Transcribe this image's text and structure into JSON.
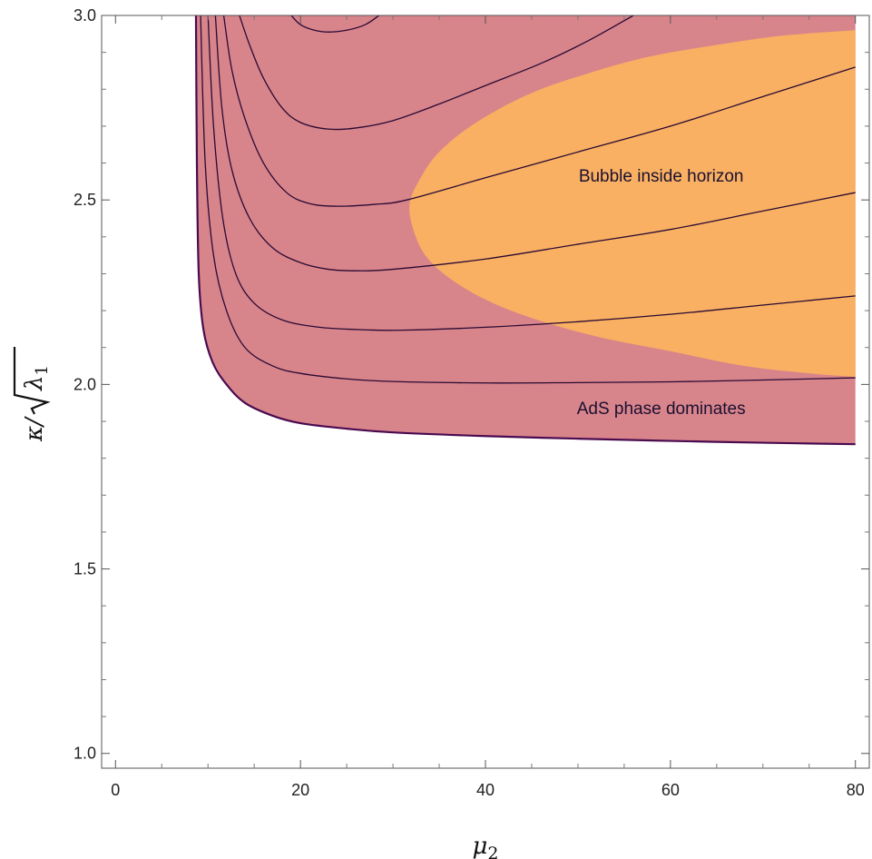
{
  "chart_data": {
    "type": "area",
    "xlabel": "μ2",
    "ylabel": "κ/√λ1",
    "xlim": [
      -1.5,
      81.5
    ],
    "ylim": [
      0.96,
      3.0
    ],
    "x_ticks": [
      0,
      20,
      40,
      60,
      80
    ],
    "y_ticks": [
      1.0,
      1.5,
      2.0,
      2.5,
      3.0
    ],
    "x_tick_labels": [
      "0",
      "20",
      "40",
      "60",
      "80"
    ],
    "y_tick_labels": [
      "1.0",
      "1.5",
      "2.0",
      "2.5",
      "3.0"
    ],
    "grid": false,
    "legend": "none",
    "colors": {
      "ads_region": "#d8848b",
      "bubble_region": "#f9b062",
      "contour": "#2a0a33",
      "boundary": "#4a0b4f"
    },
    "annotations": [
      {
        "text": "Bubble inside horizon",
        "x": 59,
        "y": 2.55
      },
      {
        "text": "AdS phase dominates",
        "x": 59,
        "y": 1.92
      }
    ],
    "regions": [
      {
        "name": "AdS phase dominates",
        "lower_boundary": [
          [
            8.7,
            3.0
          ],
          [
            8.8,
            2.6
          ],
          [
            9.0,
            2.3
          ],
          [
            9.5,
            2.15
          ],
          [
            10.5,
            2.06
          ],
          [
            12,
            2.0
          ],
          [
            14,
            1.95
          ],
          [
            17,
            1.915
          ],
          [
            20,
            1.895
          ],
          [
            25,
            1.88
          ],
          [
            30,
            1.87
          ],
          [
            40,
            1.86
          ],
          [
            50,
            1.853
          ],
          [
            60,
            1.847
          ],
          [
            70,
            1.842
          ],
          [
            80,
            1.838
          ]
        ]
      },
      {
        "name": "Bubble inside horizon",
        "boundary": [
          [
            80,
            2.96
          ],
          [
            72,
            2.945
          ],
          [
            65,
            2.92
          ],
          [
            58,
            2.89
          ],
          [
            52,
            2.85
          ],
          [
            45,
            2.79
          ],
          [
            39,
            2.71
          ],
          [
            35,
            2.63
          ],
          [
            33,
            2.56
          ],
          [
            31.8,
            2.49
          ],
          [
            32.2,
            2.42
          ],
          [
            33.5,
            2.35
          ],
          [
            36,
            2.29
          ],
          [
            40,
            2.23
          ],
          [
            45,
            2.18
          ],
          [
            52,
            2.13
          ],
          [
            60,
            2.09
          ],
          [
            68,
            2.05
          ],
          [
            75,
            2.03
          ],
          [
            80,
            2.02
          ]
        ]
      }
    ],
    "series": [
      {
        "values": [
          [
            9.2,
            3.0
          ],
          [
            9.7,
            2.6
          ],
          [
            10.6,
            2.35
          ],
          [
            12,
            2.2
          ],
          [
            14,
            2.1
          ],
          [
            17,
            2.05
          ],
          [
            20,
            2.03
          ],
          [
            25,
            2.015
          ],
          [
            30,
            2.008
          ],
          [
            40,
            2.004
          ],
          [
            50,
            2.005
          ],
          [
            60,
            2.007
          ],
          [
            70,
            2.012
          ],
          [
            80,
            2.018
          ]
        ]
      },
      {
        "values": [
          [
            10.0,
            3.0
          ],
          [
            10.6,
            2.7
          ],
          [
            11.6,
            2.45
          ],
          [
            13,
            2.3
          ],
          [
            15,
            2.22
          ],
          [
            18,
            2.175
          ],
          [
            22,
            2.155
          ],
          [
            27,
            2.148
          ],
          [
            31,
            2.147
          ],
          [
            40,
            2.155
          ],
          [
            50,
            2.17
          ],
          [
            60,
            2.19
          ],
          [
            70,
            2.215
          ],
          [
            80,
            2.24
          ]
        ]
      },
      {
        "values": [
          [
            10.8,
            3.0
          ],
          [
            11.5,
            2.75
          ],
          [
            12.6,
            2.58
          ],
          [
            14.5,
            2.45
          ],
          [
            17,
            2.37
          ],
          [
            20,
            2.33
          ],
          [
            23,
            2.312
          ],
          [
            26,
            2.308
          ],
          [
            30,
            2.312
          ],
          [
            40,
            2.34
          ],
          [
            50,
            2.38
          ],
          [
            60,
            2.42
          ],
          [
            70,
            2.47
          ],
          [
            80,
            2.52
          ]
        ]
      },
      {
        "values": [
          [
            11.7,
            3.0
          ],
          [
            12.6,
            2.85
          ],
          [
            14,
            2.72
          ],
          [
            16,
            2.6
          ],
          [
            18.5,
            2.52
          ],
          [
            21,
            2.49
          ],
          [
            24,
            2.483
          ],
          [
            28,
            2.488
          ],
          [
            31.5,
            2.5
          ],
          [
            40,
            2.56
          ],
          [
            50,
            2.63
          ],
          [
            60,
            2.7
          ],
          [
            70,
            2.78
          ],
          [
            80,
            2.86
          ]
        ]
      },
      {
        "values": [
          [
            13.4,
            3.0
          ],
          [
            14.5,
            2.92
          ],
          [
            16,
            2.83
          ],
          [
            18,
            2.75
          ],
          [
            20,
            2.71
          ],
          [
            23,
            2.692
          ],
          [
            26,
            2.695
          ],
          [
            30,
            2.715
          ],
          [
            35,
            2.76
          ],
          [
            40,
            2.81
          ],
          [
            46,
            2.87
          ],
          [
            51,
            2.93
          ],
          [
            56,
            3.0
          ]
        ]
      },
      {
        "values": [
          [
            19.0,
            3.0
          ],
          [
            20,
            2.975
          ],
          [
            21.5,
            2.96
          ],
          [
            23,
            2.955
          ],
          [
            25,
            2.96
          ],
          [
            27,
            2.975
          ],
          [
            28.5,
            3.0
          ]
        ]
      }
    ]
  }
}
